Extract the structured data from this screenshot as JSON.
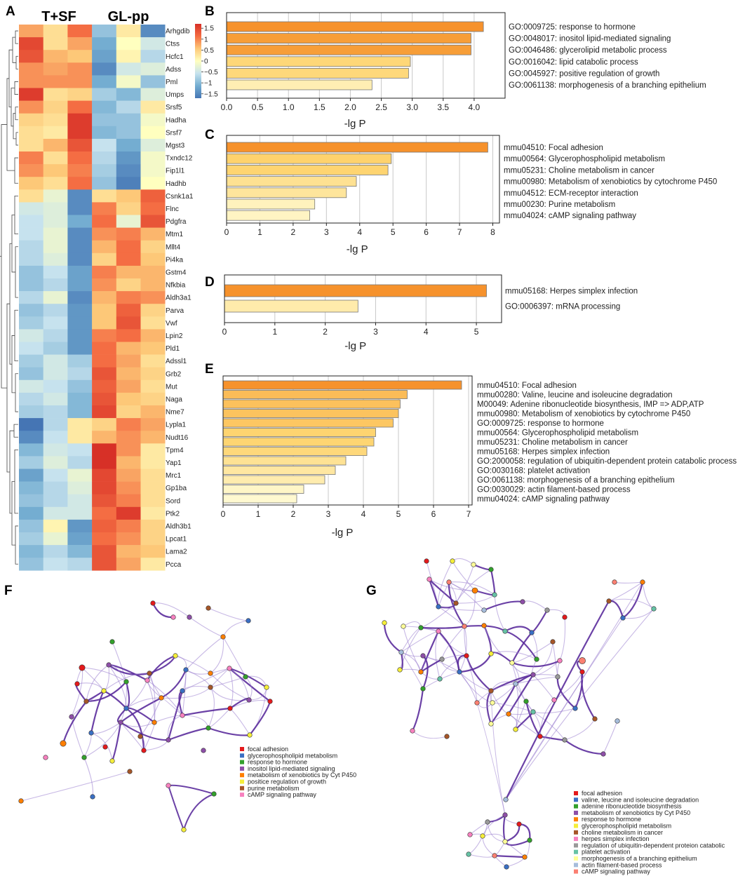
{
  "panels": {
    "a": "A",
    "b": "B",
    "c": "C",
    "d": "D",
    "e": "E",
    "f": "F",
    "g": "G"
  },
  "heatmap": {
    "group1": "T+SF",
    "group2": "GL-pp",
    "colorbar_ticks": [
      "1.5",
      "1",
      "0.5",
      "0",
      "−0.5",
      "−1",
      "−1.5"
    ],
    "colorbar_values": [
      1.5,
      1,
      0.5,
      0,
      -0.5,
      -1,
      -1.5
    ],
    "genes": [
      "Arhgdib",
      "Ctss",
      "Hcfc1",
      "Adss",
      "Pml",
      "Umps",
      "Srsf5",
      "Hadha",
      "Srsf7",
      "Mgst3",
      "Txndc12",
      "Fip1l1",
      "Hadhb",
      "Csnk1a1",
      "Flnc",
      "Pdgfra",
      "Mtm1",
      "Mllt4",
      "Pi4ka",
      "Gstm4",
      "Nfkbia",
      "Aldh3a1",
      "Parva",
      "Vwf",
      "Lpin2",
      "Pld1",
      "Adssl1",
      "Grb2",
      "Mut",
      "Naga",
      "Nme7",
      "Lypla1",
      "Nudt16",
      "Tpm4",
      "Yap1",
      "Mrc1",
      "Gp1ba",
      "Sord",
      "Ptk2",
      "Aldh3b1",
      "Lpcat1",
      "Lama2",
      "Pcca"
    ],
    "values": [
      [
        0.7,
        0.3,
        1.0,
        -0.8,
        0.2,
        -1.3
      ],
      [
        1.3,
        0.3,
        0.7,
        -1.0,
        0.0,
        -0.4
      ],
      [
        1.2,
        0.6,
        0.5,
        -1.1,
        0.1,
        -0.6
      ],
      [
        0.8,
        0.7,
        0.8,
        -1.3,
        -0.4,
        -0.3
      ],
      [
        0.8,
        0.8,
        0.8,
        -1.0,
        -0.1,
        -0.8
      ],
      [
        1.4,
        0.3,
        0.4,
        -0.7,
        -0.9,
        -0.3
      ],
      [
        0.8,
        0.4,
        1.0,
        -0.9,
        -0.6,
        0.2
      ],
      [
        0.4,
        0.3,
        1.4,
        -0.8,
        -0.8,
        -0.1
      ],
      [
        0.3,
        0.2,
        1.4,
        -0.9,
        -0.8,
        0.0
      ],
      [
        0.3,
        0.6,
        1.2,
        -0.5,
        -1.0,
        -0.3
      ],
      [
        0.9,
        0.3,
        1.0,
        -0.6,
        -1.2,
        -0.1
      ],
      [
        0.8,
        0.5,
        0.9,
        -0.7,
        -1.3,
        -0.1
      ],
      [
        0.5,
        0.3,
        1.0,
        -0.8,
        -1.4,
        0.0
      ],
      [
        0.3,
        -0.2,
        -1.3,
        0.3,
        0.5,
        1.1
      ],
      [
        -0.4,
        -0.3,
        -1.3,
        0.9,
        0.4,
        1.0
      ],
      [
        -0.5,
        -0.3,
        -1.0,
        1.0,
        -0.2,
        1.2
      ],
      [
        -0.5,
        -0.2,
        -1.3,
        0.8,
        0.9,
        0.6
      ],
      [
        -0.6,
        -0.2,
        -1.3,
        0.6,
        1.0,
        0.4
      ],
      [
        -0.6,
        -0.3,
        -1.3,
        0.4,
        1.0,
        0.5
      ],
      [
        -0.8,
        -0.5,
        -1.1,
        0.9,
        0.6,
        0.6
      ],
      [
        -0.8,
        -0.6,
        -1.1,
        0.8,
        0.4,
        0.6
      ],
      [
        -0.6,
        -0.2,
        -1.3,
        0.6,
        0.9,
        0.8
      ],
      [
        -0.8,
        -0.6,
        -1.2,
        0.5,
        1.1,
        0.4
      ],
      [
        -0.7,
        -0.5,
        -1.2,
        0.5,
        1.2,
        0.3
      ],
      [
        -0.4,
        -0.6,
        -1.2,
        0.9,
        1.0,
        0.6
      ],
      [
        -0.5,
        -0.7,
        -1.2,
        1.0,
        0.6,
        0.5
      ],
      [
        -0.7,
        -0.4,
        -0.7,
        1.0,
        0.7,
        0.3
      ],
      [
        -0.8,
        -0.4,
        -0.6,
        1.2,
        0.6,
        0.4
      ],
      [
        -0.4,
        -0.5,
        -0.8,
        1.1,
        0.7,
        0.3
      ],
      [
        -0.6,
        -0.4,
        -0.9,
        1.2,
        0.5,
        0.4
      ],
      [
        -0.7,
        -0.6,
        -0.9,
        1.3,
        0.4,
        0.6
      ],
      [
        -1.5,
        -0.6,
        0.2,
        0.4,
        0.9,
        0.7
      ],
      [
        -1.3,
        -0.5,
        0.2,
        0.6,
        0.8,
        0.6
      ],
      [
        -0.9,
        -0.4,
        -0.5,
        1.5,
        0.8,
        0.2
      ],
      [
        -0.7,
        -0.3,
        -0.6,
        1.5,
        0.6,
        0.2
      ],
      [
        -1.1,
        -0.5,
        -0.2,
        1.3,
        0.7,
        0.3
      ],
      [
        -0.9,
        -0.6,
        -0.3,
        1.3,
        0.8,
        0.3
      ],
      [
        -0.8,
        -0.6,
        -0.4,
        1.2,
        0.9,
        0.3
      ],
      [
        -1.0,
        -0.4,
        -0.4,
        1.0,
        1.4,
        0.2
      ],
      [
        -0.8,
        0.1,
        -1.2,
        1.1,
        0.9,
        0.4
      ],
      [
        -0.7,
        -0.2,
        -1.1,
        1.0,
        0.8,
        0.4
      ],
      [
        -0.9,
        -0.6,
        -0.9,
        1.2,
        0.6,
        0.5
      ],
      [
        -0.8,
        -0.5,
        -0.6,
        1.2,
        0.7,
        0.2
      ]
    ]
  },
  "chart_data": [
    {
      "type": "bar",
      "orientation": "horizontal",
      "panel": "B",
      "xlabel": "-lg P",
      "xlim": [
        0,
        4.5
      ],
      "xticks": [
        0,
        0.5,
        1,
        1.5,
        2,
        2.5,
        3,
        3.5,
        4
      ],
      "xtick_labels": [
        "0.0",
        "0.5",
        "1.0",
        "1.5",
        "2.0",
        "2.5",
        "3.0",
        "3.5",
        "4.0"
      ],
      "categories": [
        "GO:0009725: response to hormone",
        "GO:0048017: inositol lipid-mediated signaling",
        "GO:0046486: glycerolipid metabolic process",
        "GO:0016042: lipid catabolic process",
        "GO:0045927: positive regulation of growth",
        "GO:0061138: morphogenesis of a branching epithelium"
      ],
      "values": [
        4.15,
        3.95,
        3.95,
        2.97,
        2.94,
        2.35
      ]
    },
    {
      "type": "bar",
      "orientation": "horizontal",
      "panel": "C",
      "xlabel": "-lg P",
      "xlim": [
        0,
        8.2
      ],
      "xticks": [
        0,
        1,
        2,
        3,
        4,
        5,
        6,
        7,
        8
      ],
      "xtick_labels": [
        "0",
        "1",
        "2",
        "3",
        "4",
        "5",
        "6",
        "7",
        "8"
      ],
      "categories": [
        "mmu04510: Focal adhesion",
        "mmu00564: Glycerophospholipid metabolism",
        "mmu05231: Choline metabolism in cancer",
        "mmu00980: Metabolism of xenobiotics by cytochrome P450",
        "mmu04512: ECM-receptor interaction",
        "mmu00230: Purine metabolism",
        "mmu04024: cAMP signaling pathway"
      ],
      "values": [
        7.85,
        4.95,
        4.85,
        3.9,
        3.6,
        2.65,
        2.5
      ]
    },
    {
      "type": "bar",
      "orientation": "horizontal",
      "panel": "D",
      "xlabel": "-lg P",
      "xlim": [
        0,
        5.5
      ],
      "xticks": [
        0,
        1,
        2,
        3,
        4,
        5
      ],
      "xtick_labels": [
        "0",
        "1",
        "2",
        "3",
        "4",
        "5"
      ],
      "categories": [
        "mmu05168: Herpes simplex infection",
        "GO:0006397: mRNA processing"
      ],
      "values": [
        5.2,
        2.65
      ]
    },
    {
      "type": "bar",
      "orientation": "horizontal",
      "panel": "E",
      "xlabel": "-lg P",
      "xlim": [
        0,
        7.1
      ],
      "xticks": [
        0,
        1,
        2,
        3,
        4,
        5,
        6,
        7
      ],
      "xtick_labels": [
        "0",
        "1",
        "2",
        "3",
        "4",
        "5",
        "6",
        "7"
      ],
      "categories": [
        "mmu04510: Focal adhesion",
        "mmu00280: Valine, leucine and isoleucine degradation",
        "M00049: Adenine ribonucleotide biosynthesis, IMP => ADP,ATP",
        "mmu00980: Metabolism of xenobiotics by cytochrome P450",
        "GO:0009725: response to hormone",
        "mmu00564: Glycerophospholipid metabolism",
        "mmu05231: Choline metabolism in cancer",
        "mmu05168: Herpes simplex infection",
        "GO:2000058: regulation of ubiquitin-dependent protein catabolic process",
        "GO:0030168: platelet activation",
        "GO:0061138: morphogenesis of a branching epithelium",
        "GO:0030029: actin filament-based process",
        "mmu04024: cAMP signaling pathway"
      ],
      "values": [
        6.8,
        5.25,
        5.05,
        5.0,
        4.85,
        4.35,
        4.3,
        4.1,
        3.5,
        3.2,
        2.9,
        2.3,
        2.1
      ]
    }
  ],
  "network_f": {
    "legend": [
      {
        "label": "focal adhesion",
        "color": "#e41a1c"
      },
      {
        "label": "glycerophospholipid metabolism",
        "color": "#3a6fc4"
      },
      {
        "label": "response to hormone",
        "color": "#33a02c"
      },
      {
        "label": "inositol lipid-mediated signaling",
        "color": "#8e4fa8"
      },
      {
        "label": "metabolism of xenobiotics by Cyt P450",
        "color": "#ff7f00"
      },
      {
        "label": "positice regulation of growth",
        "color": "#f5ee3a"
      },
      {
        "label": "purine metabolism",
        "color": "#a65628"
      },
      {
        "label": "cAMP signaling pathway",
        "color": "#f781bf"
      }
    ]
  },
  "network_g": {
    "legend": [
      {
        "label": "focal adhesion",
        "color": "#e41a1c"
      },
      {
        "label": "valine, leucine and isoleucine degradation",
        "color": "#3a6fc4"
      },
      {
        "label": "adenine ribonucleotide biosynthesis",
        "color": "#33a02c"
      },
      {
        "label": "metabolism of xenobiotics by Cyt P450",
        "color": "#8e4fa8"
      },
      {
        "label": "response to hormone",
        "color": "#ff7f00"
      },
      {
        "label": "glycerophospholipid metabolism",
        "color": "#f5ee3a"
      },
      {
        "label": "choline metabolism in cancer",
        "color": "#a65628"
      },
      {
        "label": "herpes simplex infection",
        "color": "#f781bf"
      },
      {
        "label": "regulation of ubiquitin-dependent proteion catabolic",
        "color": "#999999"
      },
      {
        "label": "platelet activation",
        "color": "#66c2a5"
      },
      {
        "label": "morphogenesis of a branching epithelium",
        "color": "#ffff99"
      },
      {
        "label": "actin filament-based process",
        "color": "#a6bddb"
      },
      {
        "label": "cAMP signaling pathway",
        "color": "#fb8072"
      }
    ]
  }
}
